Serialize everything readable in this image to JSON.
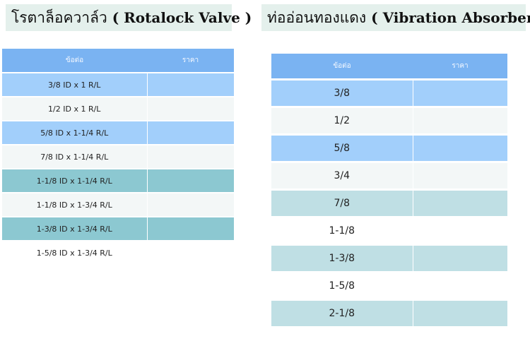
{
  "left": {
    "title_thai": "โรตาล็อควาล์ว",
    "title_eng": "( Rotalock Valve )",
    "header_col1": "ข้อต่อ",
    "header_col2": "ราคา",
    "rows": [
      {
        "label": "3/8 ID x 1 R/L",
        "style": "blue"
      },
      {
        "label": "1/2 ID x 1 R/L",
        "style": "light"
      },
      {
        "label": "5/8 ID x 1-1/4 R/L",
        "style": "blue"
      },
      {
        "label": "7/8 ID x 1-1/4 R/L",
        "style": "light"
      },
      {
        "label": "1-1/8 ID x 1-1/4 R/L",
        "style": "teal"
      },
      {
        "label": "1-1/8 ID x 1-3/4 R/L",
        "style": "light"
      },
      {
        "label": "1-3/8 ID x 1-3/4 R/L",
        "style": "teal"
      },
      {
        "label": "1-5/8 ID x 1-3/4 R/L",
        "style": "white"
      }
    ]
  },
  "right": {
    "title_thai": "ท่ออ่อนทองแดง",
    "title_eng": "( Vibration Absorber )",
    "header_col1": "ข้อต่อ",
    "header_col2": "ราคา",
    "rows": [
      {
        "label": "3/8",
        "style": "blue"
      },
      {
        "label": "1/2",
        "style": "light"
      },
      {
        "label": "5/8",
        "style": "blue"
      },
      {
        "label": "3/4",
        "style": "light"
      },
      {
        "label": "7/8",
        "style": "pale"
      },
      {
        "label": "1-1/8",
        "style": "white"
      },
      {
        "label": "1-3/8",
        "style": "pale"
      },
      {
        "label": "1-5/8",
        "style": "white"
      },
      {
        "label": "2-1/8",
        "style": "pale"
      }
    ]
  }
}
